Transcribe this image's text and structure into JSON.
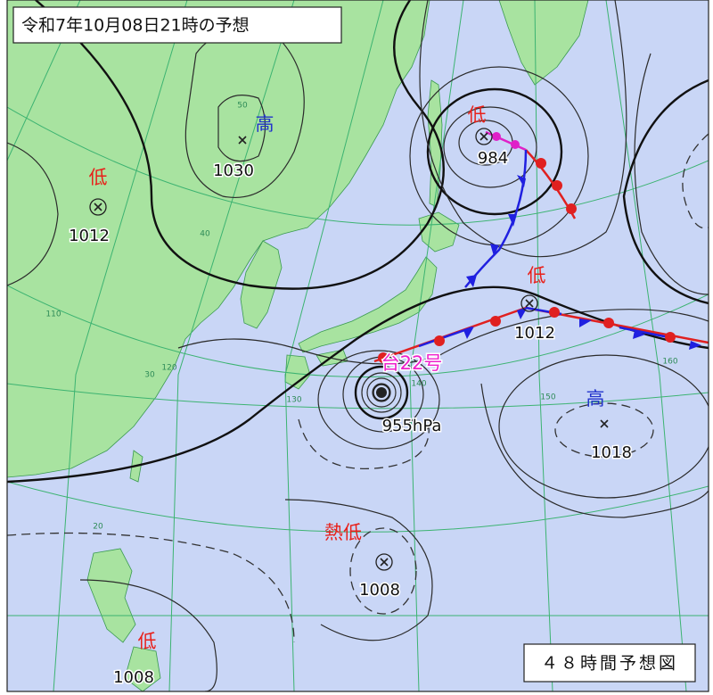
{
  "header": {
    "title": "令和7年10月08日21時の予想"
  },
  "footer": {
    "title": "４８時間予想図"
  },
  "systems": [
    {
      "symbol": "高",
      "pressure": 1030
    },
    {
      "symbol": "低",
      "pressure": 1012
    },
    {
      "symbol": "低",
      "pressure": 984
    },
    {
      "symbol": "低",
      "pressure": 1012
    },
    {
      "symbol": "台22号",
      "pressure": "955hPa"
    },
    {
      "symbol": "高",
      "pressure": 1018
    },
    {
      "symbol": "熱低",
      "pressure": 1008
    },
    {
      "symbol": "低",
      "pressure": 1008
    }
  ],
  "grid_labels": [
    "50",
    "40",
    "30",
    "20",
    "110",
    "120",
    "130",
    "140",
    "150",
    "160"
  ]
}
